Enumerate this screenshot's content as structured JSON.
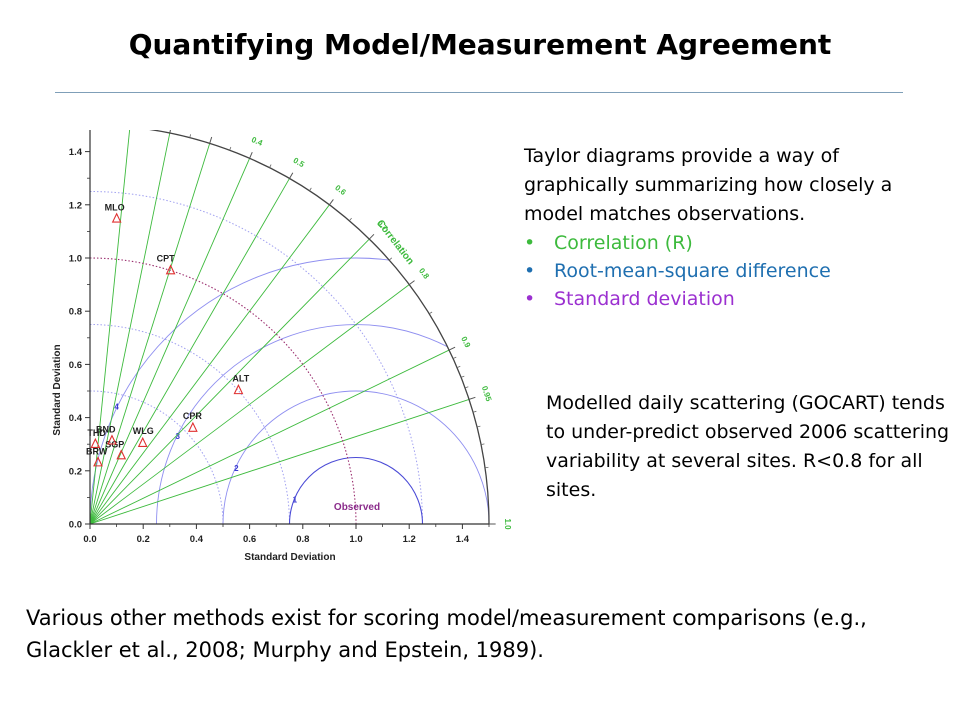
{
  "title": "Quantifying Model/Measurement Agreement",
  "intro": "Taylor diagrams provide a way of graphically summarizing how closely a model matches observations.",
  "bullets": [
    {
      "label": "Correlation (R)",
      "color": "#3dba3d"
    },
    {
      "label": "Root-mean-square difference",
      "color": "#1f6fb0"
    },
    {
      "label": "Standard deviation",
      "color": "#9b30d0"
    }
  ],
  "note": "Modelled daily scattering (GOCART) tends to under-predict observed 2006 scattering variability at several sites. R<0.8 for all sites.",
  "footer": "Various other methods exist for scoring model/measurement comparisons (e.g., Glackler et al., 2008; Murphy and Epstein, 1989).",
  "chart_data": {
    "type": "scatter",
    "xlabel": "Standard Deviation",
    "ylabel": "Standard Deviation",
    "arc_label": "Correlation",
    "observed_label": "Observed",
    "reference_std": 1.0,
    "max_std": 1.5,
    "std_ticks": [
      "0.0",
      "0.2",
      "0.4",
      "0.6",
      "0.8",
      "1.0",
      "1.2",
      "1.4"
    ],
    "correlation_ticks": [
      "0.0",
      "0.1",
      "0.2",
      "0.3",
      "0.4",
      "0.5",
      "0.6",
      "0.7",
      "0.8",
      "0.9",
      "0.95",
      "1.0"
    ],
    "rms_contours": [
      "1",
      "2",
      "3",
      "4"
    ],
    "sites": [
      {
        "name": "MLO",
        "std": 1.152,
        "corr": 0.087
      },
      {
        "name": "CPT",
        "std": 1.0,
        "corr": 0.303
      },
      {
        "name": "ALT",
        "std": 0.751,
        "corr": 0.743
      },
      {
        "name": "CPR",
        "std": 0.529,
        "corr": 0.731
      },
      {
        "name": "WLG",
        "std": 0.363,
        "corr": 0.546
      },
      {
        "name": "SGP",
        "std": 0.283,
        "corr": 0.415
      },
      {
        "name": "BND",
        "std": 0.324,
        "corr": 0.255
      },
      {
        "name": "THD",
        "std": 0.301,
        "corr": 0.067
      },
      {
        "name": "BRW",
        "std": 0.233,
        "corr": 0.129
      }
    ],
    "colors": {
      "correlation": "#3dba3d",
      "rms": "#3a3ad0",
      "std": "#a0a0f0",
      "reference": "#9b2f6f",
      "sites": "#e03030"
    }
  }
}
